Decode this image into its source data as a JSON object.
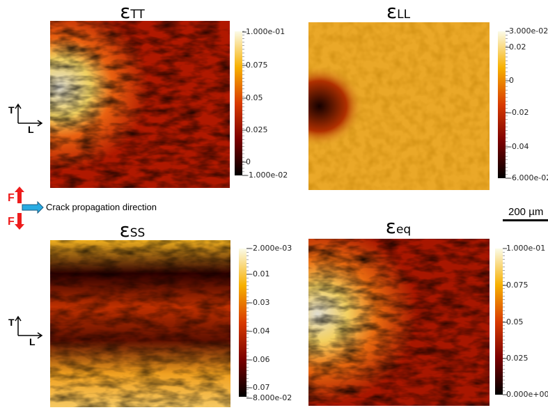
{
  "panels": [
    {
      "title": {
        "symbol": "ε",
        "subscript": "TT"
      },
      "colorbar_ticks": [
        "1.000e-01",
        "0.075",
        "0.05",
        "0.025",
        "0",
        "-1.000e-02"
      ]
    },
    {
      "title": {
        "symbol": "ε",
        "subscript": "LL"
      },
      "colorbar_ticks": [
        "3.000e-02",
        "0.02",
        "0",
        "-0.02",
        "-0.04",
        "-6.000e-02"
      ]
    },
    {
      "title": {
        "symbol": "ε",
        "subscript": "SS"
      },
      "colorbar_ticks": [
        "-2.000e-03",
        "-0.01",
        "-0.03",
        "-0.04",
        "-0.06",
        "-0.07",
        "-8.000e-02"
      ]
    },
    {
      "title": {
        "symbol": "ε",
        "subscript": "eq"
      },
      "colorbar_ticks": [
        "1.000e-01",
        "0.075",
        "0.05",
        "0.025",
        "0.000e+00"
      ]
    }
  ],
  "axes_legend": [
    {
      "up": "T",
      "right": "L"
    },
    {
      "up": "T",
      "right": "L"
    }
  ],
  "force_labels": [
    "F",
    "F"
  ],
  "crack_label": "Crack propagation direction",
  "scale_bar": "200 µm"
}
